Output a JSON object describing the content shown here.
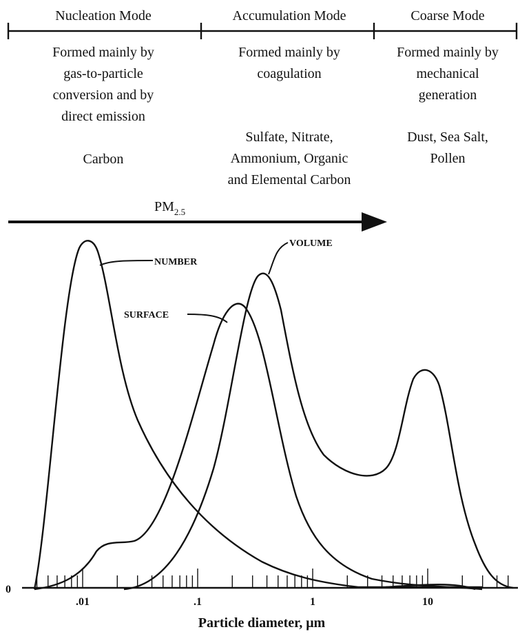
{
  "header": {
    "modes": [
      {
        "title": "Nucleation Mode",
        "description": [
          "Formed mainly by",
          "gas-to-particle",
          "conversion and by",
          "direct emission"
        ],
        "composition": [
          "Carbon"
        ]
      },
      {
        "title": "Accumulation Mode",
        "description": [
          "Formed mainly by",
          "coagulation"
        ],
        "composition": [
          "Sulfate, Nitrate,",
          "Ammonium, Organic",
          "and Elemental Carbon"
        ]
      },
      {
        "title": "Coarse Mode",
        "description": [
          "Formed mainly by",
          "mechanical",
          "generation"
        ],
        "composition": [
          "Dust, Sea Salt,",
          "Pollen"
        ]
      }
    ]
  },
  "pm_label": {
    "main": "PM",
    "sub": "2.5"
  },
  "curve_labels": {
    "number": "NUMBER",
    "surface": "SURFACE",
    "volume": "VOLUME"
  },
  "axis": {
    "origin_label": "0",
    "tick_labels": [
      ".01",
      ".1",
      "1",
      "10"
    ],
    "title": "Particle diameter, μm"
  }
}
